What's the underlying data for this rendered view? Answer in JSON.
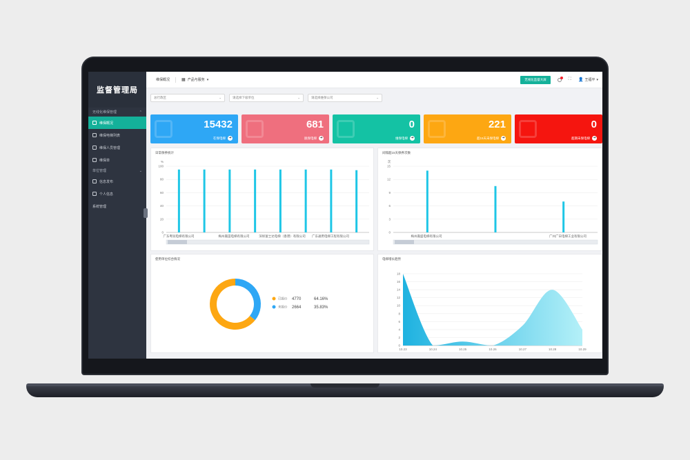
{
  "brand": "监督管理局",
  "sidebar": {
    "group1": "无线化维保管理",
    "items": [
      {
        "label": "维保概况",
        "active": true
      },
      {
        "label": "维保电梯列表",
        "active": false
      },
      {
        "label": "维保人员管理",
        "active": false
      },
      {
        "label": "维保单",
        "active": false
      }
    ],
    "group2": "单位管理",
    "items2": [
      {
        "label": "信息发布"
      },
      {
        "label": "个人信息"
      },
      {
        "label": "系统管理"
      }
    ]
  },
  "topbar": {
    "home": "维保概况",
    "product": "产品与服务",
    "big_screen": "无线化监督大屏",
    "user": "王福平"
  },
  "filters": [
    {
      "placeholder": "总行政区"
    },
    {
      "placeholder": "请选择下级单位"
    },
    {
      "placeholder": "请选择维保公司"
    }
  ],
  "stats": [
    {
      "value": "15432",
      "label": "在保电梯",
      "color": "#2ea7f5"
    },
    {
      "value": "681",
      "label": "脱保电梯",
      "color": "#ef6f7e"
    },
    {
      "value": "0",
      "label": "维保电梯",
      "color": "#14c2a4"
    },
    {
      "value": "221",
      "label": "超15天未保电梯",
      "color": "#fda712"
    },
    {
      "value": "0",
      "label": "超期未保电梯",
      "color": "#f5150f"
    }
  ],
  "panels": {
    "p1": "日常保养统计",
    "p2": "间隔超15天保养次数",
    "p3": "使用单位综合情况",
    "p4": "电梯增长趋势"
  },
  "chart_data": [
    {
      "type": "bar",
      "title": "日常保养统计",
      "ylabel": "%",
      "ylim": [
        0,
        100
      ],
      "yticks": [
        0,
        20,
        40,
        60,
        80,
        100
      ],
      "categories_shown": [
        "广东粤润电梯有限公司",
        "梅州嘉田电梯有限公司",
        "深圳富士达电梯（香港）有限公司",
        "广东通用电梯工程有限公司"
      ],
      "values": [
        95,
        95,
        95,
        95,
        95,
        95,
        95,
        94
      ]
    },
    {
      "type": "bar",
      "title": "间隔超15天保养次数",
      "ylabel": "次",
      "ylim": [
        0,
        15
      ],
      "yticks": [
        0,
        3,
        6,
        9,
        12,
        15
      ],
      "categories_shown": [
        "梅州嘉盛电梯有限公司",
        "广州广日电梯工业有限公司"
      ],
      "values": [
        14,
        10.5,
        7
      ]
    },
    {
      "type": "pie",
      "title": "使用单位综合情况",
      "slices": [
        {
          "name": "已报价",
          "value": 4770,
          "percent": "64.16%",
          "color": "#fda712"
        },
        {
          "name": "未报价",
          "value": 2664,
          "percent": "35.83%",
          "color": "#2ea7f5"
        }
      ]
    },
    {
      "type": "area",
      "title": "电梯增长趋势",
      "x": [
        "10.23",
        "10.24",
        "10.25",
        "10.26",
        "10.27",
        "10.28",
        "10.29"
      ],
      "y": [
        18,
        0,
        1,
        0,
        5,
        14,
        4
      ],
      "ylim": [
        0,
        18
      ],
      "yticks": [
        0,
        2,
        4,
        6,
        8,
        10,
        12,
        14,
        16,
        18
      ]
    }
  ]
}
